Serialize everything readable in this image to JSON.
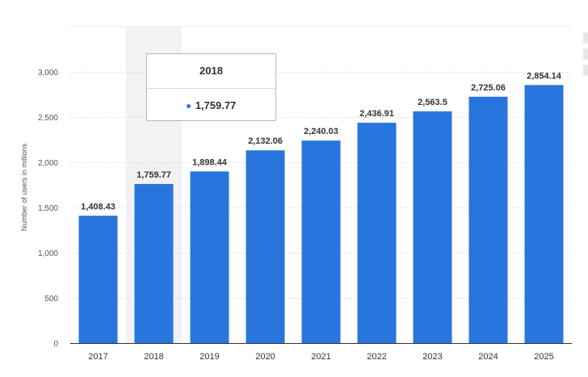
{
  "chart_data": {
    "type": "bar",
    "categories": [
      "2017",
      "2018",
      "2019",
      "2020",
      "2021",
      "2022",
      "2023",
      "2024",
      "2025"
    ],
    "values": [
      1408.43,
      1759.77,
      1898.44,
      2132.06,
      2240.03,
      2436.91,
      2563.5,
      2725.06,
      2854.14
    ],
    "data_labels": [
      "1,408.43",
      "1,759.77",
      "1,898.44",
      "2,132.06",
      "2,240.03",
      "2,436.91",
      "2,563.5",
      "2,725.06",
      "2,854.14"
    ],
    "title": "",
    "xlabel": "",
    "ylabel": "Number of users in millions",
    "ylim": [
      0,
      3000
    ],
    "yticks": [
      0,
      500,
      1000,
      1500,
      2000,
      2500,
      3000
    ],
    "ytick_labels": [
      "0",
      "500",
      "1,000",
      "1,500",
      "2,000",
      "2,500",
      "3,000"
    ],
    "grid": true,
    "legend": "none",
    "bar_color": "#2876dd",
    "highlighted_category": "2018",
    "highlight_band_color": "#f2f2f2"
  },
  "tooltip": {
    "title": "2018",
    "value": "1,759.77"
  }
}
